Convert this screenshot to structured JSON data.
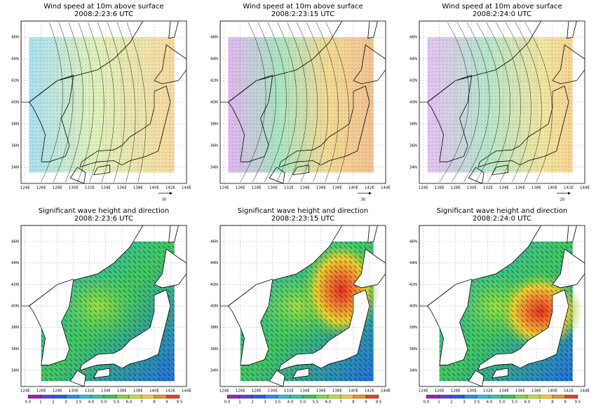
{
  "panels": [
    {
      "title": "Wind speed at 10m above surface",
      "time": "2008:2:23:6 UTC",
      "reference_vector": "30"
    },
    {
      "title": "Wind speed at 10m above surface",
      "time": "2008:2:23:15 UTC",
      "reference_vector": "30"
    },
    {
      "title": "Wind speed at 10m above surface",
      "time": "2008:2:24:0 UTC",
      "reference_vector": "20"
    },
    {
      "title": "Significant wave height and direction",
      "time": "2008:2:23:6 UTC"
    },
    {
      "title": "Significant wave height and direction",
      "time": "2008:2:23:15 UTC"
    },
    {
      "title": "Significant wave height and direction",
      "time": "2008:2:24:0 UTC"
    }
  ],
  "lon_ticks": [
    "124E",
    "126E",
    "128E",
    "130E",
    "132E",
    "134E",
    "136E",
    "138E",
    "140E",
    "142E",
    "144E"
  ],
  "lat_ticks": [
    "34N",
    "36N",
    "38N",
    "40N",
    "42N",
    "44N",
    "46N"
  ],
  "colorbar_ticks": [
    "0.0",
    "1",
    "2",
    "3",
    "3.5",
    "4.0",
    "5.0",
    "5.5",
    "6.0",
    "7",
    "8",
    "9",
    "9.5"
  ]
}
